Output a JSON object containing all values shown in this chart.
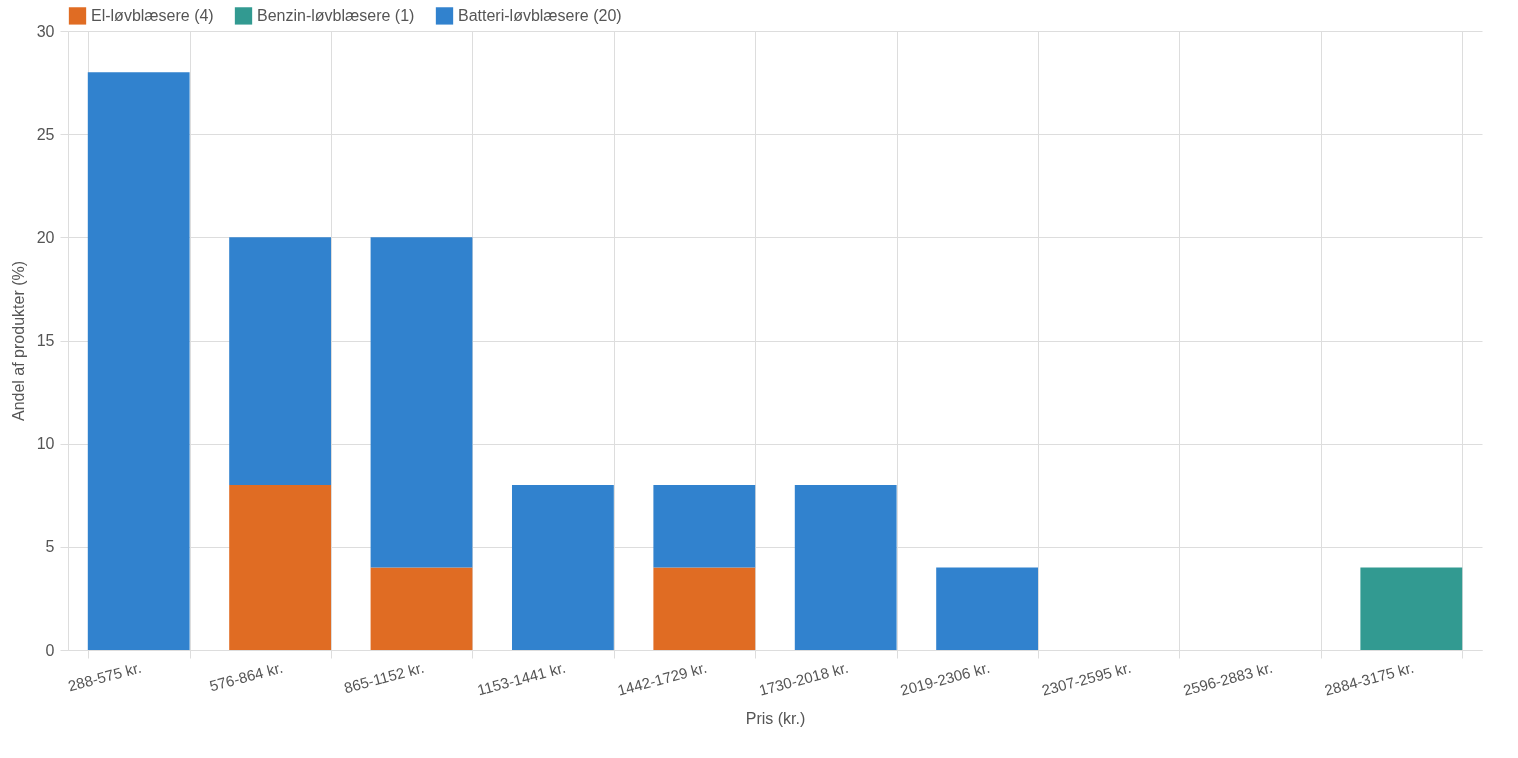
{
  "chart_data": {
    "type": "bar",
    "stacked": true,
    "xlabel": "Pris (kr.)",
    "ylabel": "Andel af produkter (%)",
    "categories": [
      "288-575 kr.",
      "576-864 kr.",
      "865-1152 kr.",
      "1153-1441 kr.",
      "1442-1729 kr.",
      "1730-2018 kr.",
      "2019-2306 kr.",
      "2307-2595 kr.",
      "2596-2883 kr.",
      "2884-3175 kr."
    ],
    "series": [
      {
        "name": "El-løvblæsere (4)",
        "color": "#e06c23",
        "values": [
          0,
          8,
          4,
          0,
          4,
          0,
          0,
          0,
          0,
          0
        ]
      },
      {
        "name": "Benzin-løvblæsere (1)",
        "color": "#329a91",
        "values": [
          0,
          0,
          0,
          0,
          0,
          0,
          0,
          0,
          0,
          4
        ]
      },
      {
        "name": "Batteri-løvblæsere (20)",
        "color": "#3182ce",
        "values": [
          28,
          12,
          16,
          8,
          4,
          8,
          4,
          0,
          0,
          0
        ]
      }
    ],
    "ylim": [
      0,
      30
    ],
    "yticks": [
      0,
      5,
      10,
      15,
      20,
      25,
      30
    ],
    "grid": true,
    "legend": "top left"
  }
}
